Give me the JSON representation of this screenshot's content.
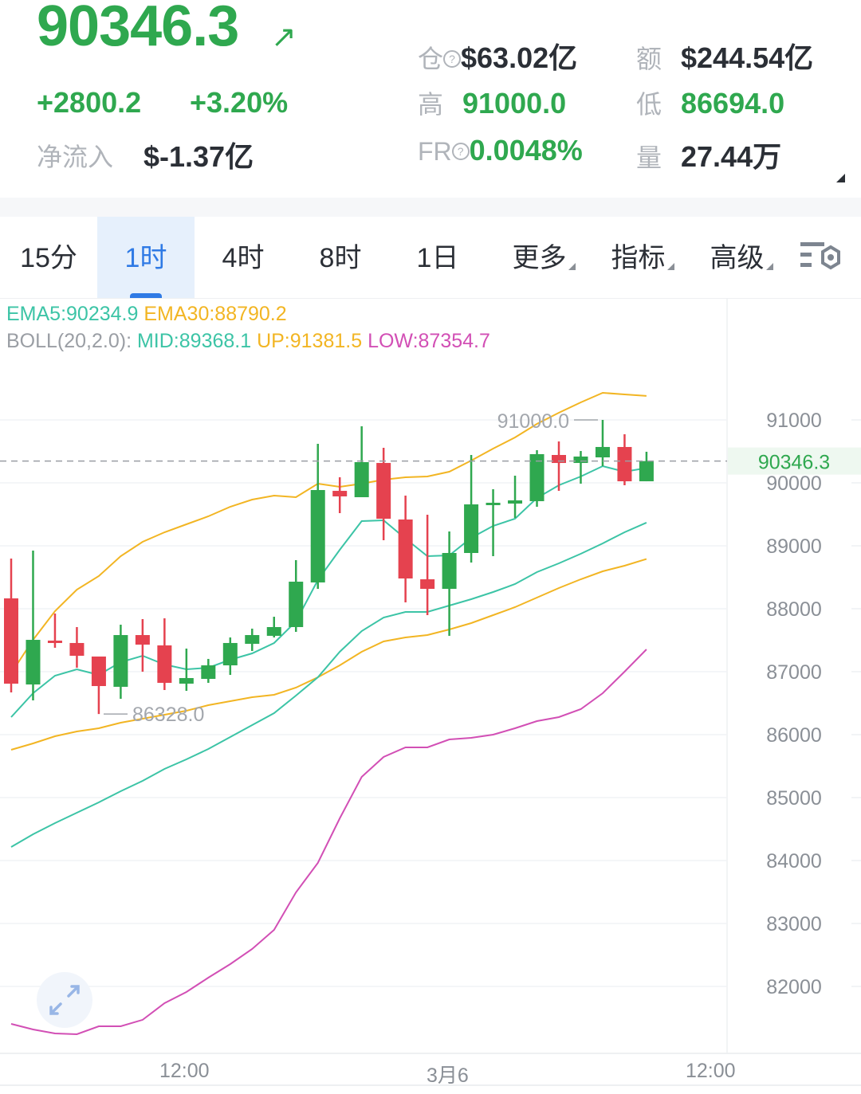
{
  "ticker": {
    "price": "90346.3",
    "change": "+2800.2",
    "change_pct": "+3.20%",
    "net_inflow_label": "净流入",
    "net_inflow_value": "$-1.37亿",
    "stats": [
      {
        "label": "仓",
        "value": "$63.02亿",
        "help": true
      },
      {
        "label": "额",
        "value": "$244.54亿"
      },
      {
        "label": "高",
        "value": "91000.0"
      },
      {
        "label": "低",
        "value": "86694.0"
      },
      {
        "label": "FR",
        "value": "0.0048%",
        "help": true
      },
      {
        "label": "量",
        "value": "27.44万"
      }
    ]
  },
  "tabs": [
    {
      "label": "15分"
    },
    {
      "label": "1时",
      "active": true
    },
    {
      "label": "4时"
    },
    {
      "label": "8时"
    },
    {
      "label": "1日"
    },
    {
      "label": "更多",
      "dropdown": true
    },
    {
      "label": "指标",
      "dropdown": true
    },
    {
      "label": "高级",
      "dropdown": true
    }
  ],
  "settings_icon": "chart-settings-icon",
  "indicators": {
    "ema5": "EMA5:90234.9",
    "ema30": "EMA30:88790.2",
    "boll_label": "BOLL(20,2.0):",
    "mid": "MID:89368.1",
    "up": "UP:91381.5",
    "low": "LOW:87354.7"
  },
  "colors": {
    "up": "#2fa84f",
    "down": "#e5424f",
    "ema5": "#3cc4a6",
    "ema30": "#f2b523",
    "mid": "#3cc4a6",
    "upper": "#f2b523",
    "lower": "#d24fb5",
    "active_tab": "#2f7ae5"
  },
  "chart_data": {
    "type": "candlestick",
    "interval": "1时",
    "y_ticks": [
      91000,
      90000,
      89000,
      88000,
      87000,
      86000,
      85000,
      84000,
      83000,
      82000
    ],
    "ylim": [
      81000,
      92000
    ],
    "x_ticks": [
      "12:00",
      "3月6",
      "12:00"
    ],
    "last_price": "90346.3",
    "high_marker": "91000.0",
    "low_marker": "86328.0",
    "grid": true,
    "candles": [
      [
        88165,
        88797,
        86671,
        86810
      ],
      [
        86797,
        88924,
        86544,
        87506
      ],
      [
        87494,
        87924,
        87380,
        87456
      ],
      [
        87456,
        87709,
        87063,
        87253
      ],
      [
        87241,
        87241,
        86328,
        86772
      ],
      [
        86760,
        87747,
        86570,
        87582
      ],
      [
        87582,
        87835,
        87000,
        87430
      ],
      [
        87418,
        87848,
        86709,
        86823
      ],
      [
        86810,
        87367,
        86696,
        86899
      ],
      [
        86886,
        87203,
        86823,
        87101
      ],
      [
        87101,
        87544,
        86949,
        87456
      ],
      [
        87443,
        87684,
        87329,
        87582
      ],
      [
        87570,
        87873,
        87544,
        87709
      ],
      [
        87709,
        88772,
        87633,
        88430
      ],
      [
        88418,
        90620,
        88316,
        89886
      ],
      [
        89873,
        90089,
        89519,
        89785
      ],
      [
        89772,
        90899,
        89772,
        90329
      ],
      [
        90316,
        90557,
        89089,
        89430
      ],
      [
        89418,
        89797,
        88101,
        88481
      ],
      [
        88468,
        89494,
        87899,
        88316
      ],
      [
        88316,
        89228,
        87570,
        88886
      ],
      [
        88886,
        90443,
        88734,
        89658
      ],
      [
        89658,
        89899,
        88835,
        89684
      ],
      [
        89671,
        90114,
        89443,
        89722
      ],
      [
        89709,
        90519,
        89620,
        90456
      ],
      [
        90443,
        90658,
        89873,
        90316
      ],
      [
        90316,
        90506,
        89987,
        90418
      ],
      [
        90405,
        91000,
        90266,
        90570
      ],
      [
        90570,
        90772,
        89962,
        90025
      ],
      [
        90025,
        90494,
        90025,
        90346.3
      ]
    ],
    "candle_fields": [
      "open",
      "high",
      "low",
      "close"
    ],
    "series": [
      {
        "name": "EMA5",
        "values": [
          86279,
          86658,
          86937,
          87038,
          86949,
          87152,
          87253,
          87114,
          87038,
          87063,
          87190,
          87291,
          87456,
          87798,
          88456,
          88937,
          89392,
          89405,
          89114,
          88835,
          88848,
          89127,
          89316,
          89430,
          89760,
          89962,
          90101,
          90266,
          90177,
          90234.9
        ]
      },
      {
        "name": "EMA30",
        "values": [
          85760,
          85861,
          85975,
          86051,
          86101,
          86190,
          86253,
          86317,
          86380,
          86468,
          86532,
          86595,
          86633,
          86747,
          86911,
          87101,
          87317,
          87481,
          87544,
          87582,
          87671,
          87772,
          87899,
          88025,
          88177,
          88329,
          88468,
          88595,
          88684,
          88790.2
        ]
      },
      {
        "name": "MID",
        "values": [
          84215,
          84418,
          84595,
          84760,
          84924,
          85101,
          85266,
          85456,
          85608,
          85772,
          85962,
          86152,
          86342,
          86620,
          86911,
          87317,
          87646,
          87861,
          87949,
          87949,
          88051,
          88152,
          88266,
          88392,
          88582,
          88722,
          88873,
          89038,
          89215,
          89368.1
        ]
      },
      {
        "name": "UP",
        "values": [
          86975,
          87506,
          87962,
          88304,
          88519,
          88835,
          89063,
          89215,
          89342,
          89468,
          89620,
          89734,
          89797,
          89772,
          89987,
          89937,
          89987,
          90051,
          90089,
          90101,
          90177,
          90354,
          90544,
          90722,
          90937,
          91114,
          91278,
          91430,
          91405,
          91381.5
        ]
      },
      {
        "name": "LOW",
        "values": [
          81405,
          81317,
          81253,
          81241,
          81367,
          81367,
          81469,
          81734,
          81912,
          82139,
          82355,
          82595,
          82899,
          83494,
          83962,
          84671,
          85329,
          85646,
          85798,
          85798,
          85924,
          85949,
          86000,
          86101,
          86215,
          86279,
          86405,
          86658,
          87000,
          87354.7
        ]
      }
    ]
  },
  "zoom_icon": "expand-icon"
}
